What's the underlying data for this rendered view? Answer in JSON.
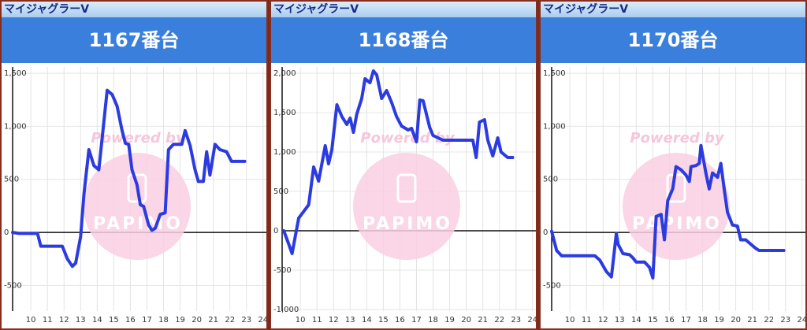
{
  "chart_data": [
    {
      "type": "line",
      "header": "マイジャグラーV",
      "title": "1167番台",
      "watermark": [
        "Powered by",
        "PAPIMO"
      ],
      "color": "#2b3be0",
      "x": [
        8.9,
        9.3,
        10.4,
        10.6,
        11.9,
        12.2,
        12.5,
        12.7,
        13.0,
        13.2,
        13.5,
        13.8,
        14.1,
        14.6,
        14.9,
        15.2,
        15.5,
        15.7,
        15.9,
        16.1,
        16.4,
        16.6,
        16.8,
        17.1,
        17.3,
        17.5,
        17.8,
        18.1,
        18.3,
        18.6,
        19.1,
        19.3,
        19.6,
        19.9,
        20.1,
        20.4,
        20.6,
        20.8,
        21.1,
        21.4,
        21.8,
        22.1,
        22.9
      ],
      "values": [
        0,
        -10,
        -10,
        -130,
        -130,
        -250,
        -320,
        -290,
        -40,
        360,
        780,
        630,
        590,
        1340,
        1300,
        1190,
        960,
        840,
        830,
        590,
        450,
        260,
        245,
        70,
        20,
        40,
        170,
        185,
        780,
        830,
        830,
        960,
        820,
        590,
        480,
        480,
        760,
        540,
        830,
        780,
        760,
        670,
        670
      ],
      "xlim": [
        8.9,
        24.2
      ],
      "ylim": [
        -742,
        1560
      ],
      "xticks": [
        10,
        11,
        12,
        13,
        14,
        15,
        16,
        17,
        18,
        19,
        20,
        21,
        22,
        23,
        24
      ],
      "yticks": [
        {
          "value": 1500,
          "label": "1,500"
        },
        {
          "value": 1000,
          "label": "1,000"
        },
        500,
        0,
        -500
      ],
      "grid": true
    },
    {
      "type": "line",
      "header": "マイジャグラーV",
      "title": "1168番台",
      "watermark": [
        "Powered by",
        "PAPIMO"
      ],
      "color": "#2b3be0",
      "x": [
        9.0,
        9.3,
        9.5,
        9.9,
        10.5,
        10.8,
        11.1,
        11.5,
        11.7,
        11.9,
        12.2,
        12.5,
        12.8,
        13.0,
        13.2,
        13.4,
        13.7,
        13.9,
        14.2,
        14.4,
        14.6,
        14.9,
        15.2,
        15.5,
        15.8,
        16.1,
        16.5,
        16.7,
        17.0,
        17.2,
        17.4,
        17.8,
        18.0,
        18.6,
        19.4,
        20.4,
        20.6,
        20.8,
        21.1,
        21.3,
        21.6,
        21.9,
        22.1,
        22.5,
        22.8
      ],
      "values": [
        0,
        -170,
        -290,
        160,
        330,
        810,
        630,
        1080,
        850,
        1030,
        1600,
        1450,
        1350,
        1430,
        1250,
        1480,
        1680,
        1930,
        1880,
        2030,
        1980,
        1680,
        1780,
        1630,
        1450,
        1330,
        1280,
        1300,
        1130,
        1660,
        1650,
        1310,
        1210,
        1150,
        1150,
        1150,
        930,
        1380,
        1410,
        1150,
        950,
        1180,
        1000,
        930,
        930
      ],
      "xlim": [
        8.9,
        24.2
      ],
      "ylim": [
        -1020,
        2080
      ],
      "xticks": [
        10,
        11,
        12,
        13,
        14,
        15,
        16,
        17,
        18,
        19,
        20,
        21,
        22,
        23,
        24
      ],
      "yticks": [
        {
          "value": 2000,
          "label": "2,000"
        },
        {
          "value": 1500,
          "label": "1,500"
        },
        {
          "value": 1000,
          "label": "1,000"
        },
        500,
        0,
        -500,
        {
          "value": -1000,
          "label": "-1,000"
        }
      ],
      "grid": true
    },
    {
      "type": "line",
      "header": "マイジャグラーV",
      "title": "1170番台",
      "watermark": [
        "Powered by",
        "PAPIMO"
      ],
      "color": "#2b3be0",
      "x": [
        8.9,
        9.2,
        9.5,
        11.5,
        11.8,
        12.2,
        12.5,
        12.8,
        12.9,
        13.2,
        13.6,
        13.8,
        14.0,
        14.5,
        14.8,
        15.0,
        15.2,
        15.5,
        15.7,
        15.9,
        16.2,
        16.4,
        16.7,
        17.0,
        17.2,
        17.3,
        17.6,
        17.8,
        17.9,
        18.2,
        18.4,
        18.6,
        18.9,
        19.1,
        19.3,
        19.5,
        19.8,
        20.1,
        20.3,
        20.6,
        20.9,
        21.2,
        21.4,
        21.8,
        22.9
      ],
      "values": [
        10,
        -170,
        -220,
        -220,
        -260,
        -370,
        -420,
        -10,
        -110,
        -200,
        -210,
        -240,
        -280,
        -280,
        -330,
        -430,
        150,
        170,
        -70,
        300,
        410,
        620,
        590,
        540,
        480,
        620,
        630,
        650,
        820,
        560,
        410,
        560,
        520,
        650,
        410,
        190,
        70,
        60,
        -70,
        -70,
        -110,
        -150,
        -170,
        -170,
        -170
      ],
      "xlim": [
        8.9,
        24.2
      ],
      "ylim": [
        -742,
        1560
      ],
      "xticks": [
        10,
        11,
        12,
        13,
        14,
        15,
        16,
        17,
        18,
        19,
        20,
        21,
        22,
        23,
        24
      ],
      "yticks": [
        {
          "value": 1500,
          "label": "1,500"
        },
        {
          "value": 1000,
          "label": "1,000"
        },
        500,
        0,
        -500
      ],
      "grid": true
    }
  ]
}
